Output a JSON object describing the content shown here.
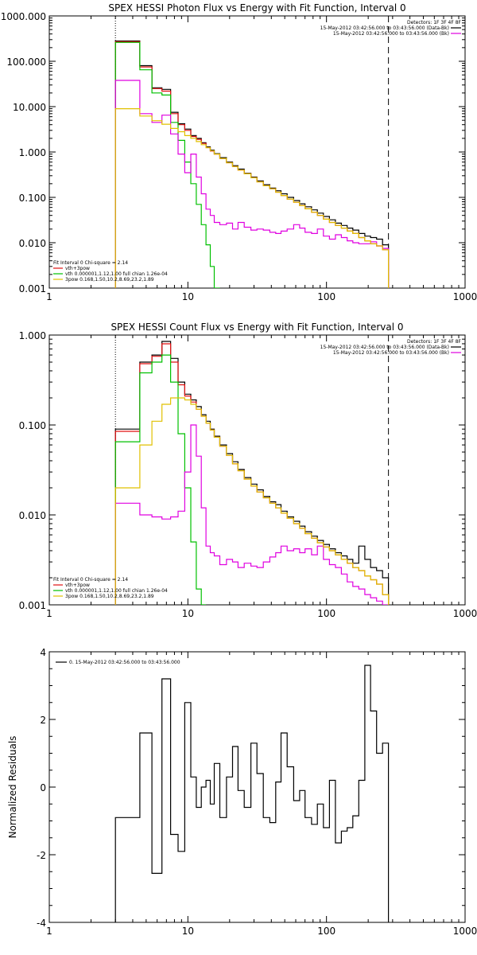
{
  "chart_data": [
    {
      "type": "line",
      "title": "SPEX HESSI Photon Flux vs Energy with Fit Function, Interval 0",
      "xscale": "log",
      "yscale": "log",
      "xlim": [
        1,
        1000
      ],
      "ylim": [
        0.001,
        1000
      ],
      "x_tick_labels": [
        "1",
        "10",
        "100",
        "1000"
      ],
      "y_tick_labels": [
        "0.001",
        "0.010",
        "0.100",
        "1.000",
        "10.000",
        "100.000",
        "1000.000"
      ],
      "detectors_label": "Detectors: 1F 3F 4F 8F",
      "legend_top": [
        {
          "text": "15-May-2012 03:42:56.000 to 03:43:56.000 (Data-Bk)",
          "color": "#000000"
        },
        {
          "text": "15-May-2012 03:42:56.000 to 03:43:56.000 (Bk)",
          "color": "#e000e0"
        }
      ],
      "fit_text": "Fit Interval 0   Chi-square = 2.14",
      "legend_bottom": [
        {
          "text": "vth+3pow",
          "color": "#e01010"
        },
        {
          "text": "vth 0.000001,1.12,1.00  full chian 1.26e-04",
          "color": "#00c000"
        },
        {
          "text": "3pow 0.168,1.50,10.2,8.69,23.2,1.89",
          "color": "#e0c000"
        }
      ],
      "vlines": [
        {
          "x": 3,
          "style": "dotted"
        },
        {
          "x": 280,
          "style": "dashed"
        }
      ],
      "x_edges": [
        3,
        4.5,
        5.5,
        6.5,
        7.5,
        8.5,
        9.5,
        10.5,
        11.5,
        12.5,
        13.5,
        14.5,
        15.5,
        17,
        19,
        21,
        23,
        25.5,
        28.5,
        31.5,
        35,
        39,
        43,
        47,
        52,
        58,
        64,
        70,
        78,
        86,
        95,
        105,
        116,
        128,
        141,
        155,
        171,
        189,
        208,
        230,
        254,
        280
      ],
      "series": [
        {
          "color": "#000000",
          "values": [
            280,
            80,
            26,
            24,
            7.5,
            4.2,
            3.2,
            2.3,
            2.0,
            1.6,
            1.3,
            1.1,
            0.92,
            0.75,
            0.6,
            0.5,
            0.42,
            0.34,
            0.28,
            0.23,
            0.19,
            0.16,
            0.14,
            0.12,
            0.1,
            0.085,
            0.072,
            0.062,
            0.053,
            0.045,
            0.038,
            0.032,
            0.027,
            0.024,
            0.021,
            0.019,
            0.016,
            0.014,
            0.013,
            0.012,
            0.009
          ]
        },
        {
          "color": "#e01010",
          "values": [
            270,
            75,
            25,
            22,
            7.0,
            4.0,
            3.0,
            2.2,
            1.9,
            1.55,
            1.25,
            1.05,
            0.9,
            0.72,
            0.58,
            0.48,
            0.4,
            0.33,
            0.27,
            0.22,
            0.18,
            0.155,
            0.13,
            0.11,
            0.092,
            0.078,
            0.066,
            0.056,
            0.047,
            0.04,
            0.033,
            0.028,
            0.024,
            0.021,
            0.018,
            0.016,
            0.013,
            0.011,
            0.0095,
            0.0085,
            0.007
          ]
        },
        {
          "color": "#00c000",
          "values": [
            260,
            65,
            20,
            18,
            4.5,
            1.8,
            0.6,
            0.2,
            0.07,
            0.025,
            0.009,
            0.003,
            0.001
          ]
        },
        {
          "color": "#e000e0",
          "values": [
            38,
            7,
            4.5,
            6.5,
            2.5,
            0.9,
            0.35,
            0.9,
            0.28,
            0.12,
            0.055,
            0.04,
            0.028,
            0.025,
            0.027,
            0.02,
            0.028,
            0.022,
            0.019,
            0.02,
            0.019,
            0.017,
            0.016,
            0.018,
            0.02,
            0.025,
            0.021,
            0.017,
            0.016,
            0.02,
            0.014,
            0.012,
            0.015,
            0.013,
            0.011,
            0.01,
            0.0095,
            0.0095,
            0.0105,
            0.0085,
            0.0075
          ]
        },
        {
          "color": "#e0c000",
          "values": [
            9,
            6.2,
            4.9,
            4.1,
            3.3,
            2.8,
            2.3,
            2.0,
            1.7,
            1.45,
            1.25,
            1.07,
            0.9,
            0.72,
            0.58,
            0.48,
            0.4,
            0.33,
            0.27,
            0.22,
            0.18,
            0.155,
            0.13,
            0.11,
            0.092,
            0.078,
            0.066,
            0.056,
            0.047,
            0.04,
            0.033,
            0.028,
            0.024,
            0.021,
            0.018,
            0.016,
            0.013,
            0.011,
            0.0095,
            0.0085,
            0.007
          ]
        }
      ]
    },
    {
      "type": "line",
      "title": "SPEX HESSI Count Flux vs Energy with Fit Function, Interval 0",
      "xscale": "log",
      "yscale": "log",
      "xlim": [
        1,
        1000
      ],
      "ylim": [
        0.001,
        1
      ],
      "x_tick_labels": [
        "1",
        "10",
        "100",
        "1000"
      ],
      "y_tick_labels": [
        "0.001",
        "0.010",
        "0.100",
        "1.000"
      ],
      "detectors_label": "Detectors: 1F 3F 4F 8F",
      "legend_top": [
        {
          "text": "15-May-2012 03:42:56.000 to 03:43:56.000 (Data-Bk)",
          "color": "#000000"
        },
        {
          "text": "15-May-2012 03:42:56.000 to 03:43:56.000 (Bk)",
          "color": "#e000e0"
        }
      ],
      "fit_text": "Fit Interval 0   Chi-square = 2.14",
      "legend_bottom": [
        {
          "text": "vth+3pow",
          "color": "#e01010"
        },
        {
          "text": "vth 0.000001,1.12,1.00  full chian 1.26e-04",
          "color": "#00c000"
        },
        {
          "text": "3pow 0.168,1.50,10.2,8.69,23.2,1.89",
          "color": "#e0c000"
        }
      ],
      "vlines": [
        {
          "x": 3,
          "style": "dotted"
        },
        {
          "x": 280,
          "style": "dashed"
        }
      ],
      "x_edges": [
        3,
        4.5,
        5.5,
        6.5,
        7.5,
        8.5,
        9.5,
        10.5,
        11.5,
        12.5,
        13.5,
        14.5,
        15.5,
        17,
        19,
        21,
        23,
        25.5,
        28.5,
        31.5,
        35,
        39,
        43,
        47,
        52,
        58,
        64,
        70,
        78,
        86,
        95,
        105,
        116,
        128,
        141,
        155,
        171,
        189,
        208,
        230,
        254,
        280
      ],
      "series": [
        {
          "color": "#000000",
          "values": [
            0.09,
            0.5,
            0.6,
            0.85,
            0.55,
            0.3,
            0.22,
            0.19,
            0.16,
            0.13,
            0.11,
            0.09,
            0.075,
            0.06,
            0.048,
            0.039,
            0.032,
            0.026,
            0.022,
            0.019,
            0.016,
            0.014,
            0.013,
            0.011,
            0.0095,
            0.0085,
            0.0075,
            0.0065,
            0.0058,
            0.0052,
            0.0047,
            0.0042,
            0.0038,
            0.0035,
            0.0032,
            0.0029,
            0.0045,
            0.0032,
            0.0026,
            0.0024,
            0.002
          ]
        },
        {
          "color": "#e01010",
          "values": [
            0.085,
            0.48,
            0.58,
            0.8,
            0.5,
            0.28,
            0.21,
            0.18,
            0.15,
            0.125,
            0.105,
            0.088,
            0.073,
            0.058,
            0.046,
            0.037,
            0.031,
            0.025,
            0.021,
            0.018,
            0.0155,
            0.0135,
            0.012,
            0.0105,
            0.0092,
            0.008,
            0.0071,
            0.0062,
            0.0055,
            0.0049,
            0.0044,
            0.004,
            0.0036,
            0.0032,
            0.0029,
            0.0026,
            0.0024,
            0.0021,
            0.0019,
            0.0017,
            0.0013
          ]
        },
        {
          "color": "#00c000",
          "values": [
            0.065,
            0.38,
            0.5,
            0.6,
            0.3,
            0.08,
            0.02,
            0.005,
            0.0015,
            0.001
          ]
        },
        {
          "color": "#e000e0",
          "values": [
            0.0135,
            0.01,
            0.0095,
            0.009,
            0.0095,
            0.011,
            0.03,
            0.1,
            0.045,
            0.012,
            0.0045,
            0.0038,
            0.0035,
            0.0028,
            0.0032,
            0.003,
            0.0026,
            0.0029,
            0.0027,
            0.0026,
            0.003,
            0.0034,
            0.0038,
            0.0045,
            0.004,
            0.0042,
            0.0038,
            0.0042,
            0.0036,
            0.0045,
            0.0032,
            0.0028,
            0.0026,
            0.0022,
            0.0018,
            0.0016,
            0.0015,
            0.0013,
            0.0012,
            0.0011,
            0.001
          ]
        },
        {
          "color": "#e0c000",
          "values": [
            0.02,
            0.06,
            0.11,
            0.17,
            0.2,
            0.2,
            0.19,
            0.17,
            0.15,
            0.125,
            0.105,
            0.088,
            0.073,
            0.058,
            0.046,
            0.037,
            0.031,
            0.025,
            0.021,
            0.018,
            0.0155,
            0.0135,
            0.012,
            0.0105,
            0.0092,
            0.008,
            0.0071,
            0.0062,
            0.0055,
            0.0049,
            0.0044,
            0.004,
            0.0036,
            0.0032,
            0.0029,
            0.0026,
            0.0024,
            0.0021,
            0.0019,
            0.0017,
            0.0013
          ]
        }
      ]
    },
    {
      "type": "line",
      "title": "",
      "xscale": "log",
      "yscale": "linear",
      "xlim": [
        1,
        1000
      ],
      "ylim": [
        -4,
        4
      ],
      "ylabel": "Normalized Residuals",
      "x_tick_labels": [
        "1",
        "10",
        "100",
        "1000"
      ],
      "y_tick_labels": [
        "-4",
        "-2",
        "0",
        "2",
        "4"
      ],
      "legend_top": [
        {
          "text": "0. 15-May-2012 03:42:56.000 to 03:43:56.000",
          "color": "#000000"
        }
      ],
      "x_edges": [
        3,
        4.5,
        5.5,
        6.5,
        7.5,
        8.5,
        9.5,
        10.5,
        11.5,
        12.5,
        13.5,
        14.5,
        15.5,
        17,
        19,
        21,
        23,
        25.5,
        28.5,
        31.5,
        35,
        39,
        43,
        47,
        52,
        58,
        64,
        70,
        78,
        86,
        95,
        105,
        116,
        128,
        141,
        155,
        171,
        189,
        208,
        230,
        254,
        280
      ],
      "series": [
        {
          "color": "#000000",
          "values": [
            -0.9,
            1.6,
            -2.55,
            3.2,
            -1.4,
            -1.9,
            2.5,
            0.3,
            -0.6,
            0,
            0.2,
            -0.5,
            0.7,
            -0.9,
            0.3,
            1.2,
            -0.1,
            -0.6,
            1.3,
            0.4,
            -0.9,
            -1.05,
            0.15,
            1.6,
            0.6,
            -0.4,
            -0.1,
            -0.9,
            -1.1,
            -0.5,
            -1.2,
            0.2,
            -1.65,
            -1.3,
            -1.2,
            -0.85,
            0.2,
            3.6,
            2.25,
            1.0,
            1.3
          ]
        }
      ]
    }
  ]
}
